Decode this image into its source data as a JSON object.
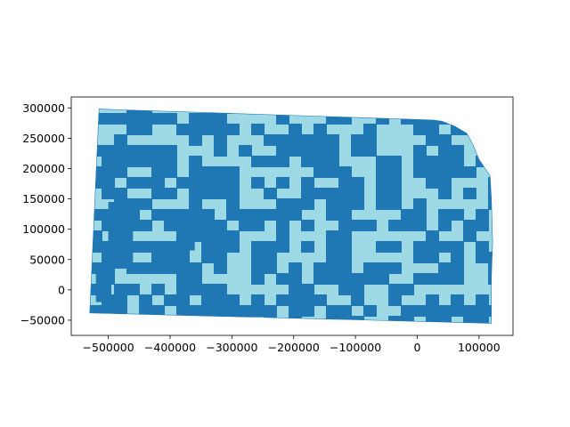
{
  "colors": {
    "dark_blue": "#1f77b4",
    "light_blue": "#9edae5",
    "axis": "#000000",
    "background": "#ffffff"
  },
  "chart_data": {
    "type": "choropleth map",
    "grid": false,
    "legend": "none",
    "xlim": [
      -560000,
      155000
    ],
    "ylim": [
      -75000,
      318000
    ],
    "x_ticks": [
      {
        "value": -500000,
        "label": "−500000"
      },
      {
        "value": -400000,
        "label": "−400000"
      },
      {
        "value": -300000,
        "label": "−300000"
      },
      {
        "value": -200000,
        "label": "−200000"
      },
      {
        "value": -100000,
        "label": "−100000"
      },
      {
        "value": 0,
        "label": "0"
      },
      {
        "value": 100000,
        "label": "100000"
      }
    ],
    "y_ticks": [
      {
        "value": 300000,
        "label": "300000"
      },
      {
        "value": 250000,
        "label": "250000"
      },
      {
        "value": 200000,
        "label": "200000"
      },
      {
        "value": 150000,
        "label": "150000"
      },
      {
        "value": 100000,
        "label": "100000"
      },
      {
        "value": 50000,
        "label": "50000"
      },
      {
        "value": 0,
        "label": "0"
      },
      {
        "value": -50000,
        "label": "−50000"
      }
    ],
    "outline": [
      [
        -515000,
        298000
      ],
      [
        25000,
        280000
      ],
      [
        40000,
        278000
      ],
      [
        60000,
        270000
      ],
      [
        80000,
        258000
      ],
      [
        90000,
        240000
      ],
      [
        100000,
        215000
      ],
      [
        118000,
        188000
      ],
      [
        120000,
        150000
      ],
      [
        122000,
        80000
      ],
      [
        120000,
        20000
      ],
      [
        120000,
        -55000
      ],
      [
        -530000,
        -38000
      ]
    ]
  }
}
